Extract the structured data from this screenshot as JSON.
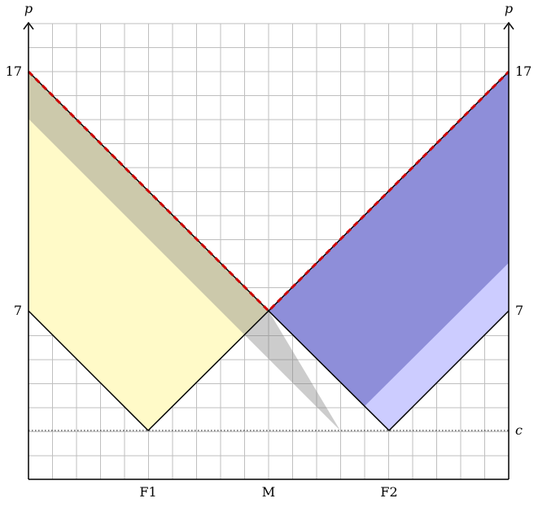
{
  "diagram": {
    "axis_left_label": "p",
    "axis_right_label": "p",
    "left_tick_high": "17",
    "left_tick_low": "7",
    "right_tick_high": "17",
    "right_tick_low": "7",
    "cost_label": "c",
    "x_label_f1": "F1",
    "x_label_m": "M",
    "x_label_f2": "F2"
  },
  "colors": {
    "firm1_region": "#fffac8",
    "firm2_region": "#ccccff",
    "overlap_region": "#a6a6a6",
    "dashed_line": "#cc0000"
  }
}
